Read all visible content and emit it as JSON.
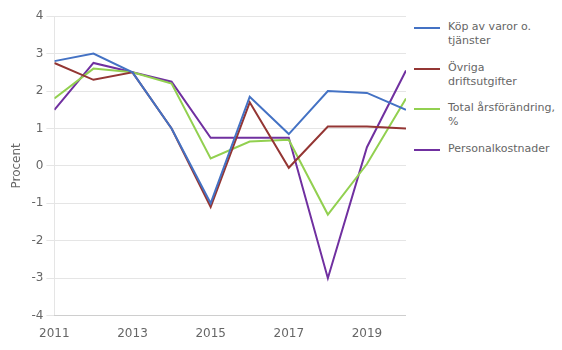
{
  "chart_data": {
    "type": "line",
    "ylabel": "Procent",
    "x": [
      2011,
      2012,
      2013,
      2014,
      2015,
      2016,
      2017,
      2018,
      2019,
      2020
    ],
    "series": [
      {
        "name": "Köp av varor o.\ntjänster",
        "color": "#4472c4",
        "values": [
          2.8,
          3.0,
          2.5,
          1.0,
          -1.0,
          1.85,
          0.85,
          2.0,
          1.95,
          1.5
        ]
      },
      {
        "name": "Övriga driftsutgifter",
        "color": "#943634",
        "values": [
          2.75,
          2.3,
          2.5,
          1.0,
          -1.1,
          1.7,
          -0.05,
          1.05,
          1.05,
          1.0
        ]
      },
      {
        "name": "Total årsförändring,\n%",
        "color": "#92d050",
        "values": [
          1.8,
          2.6,
          2.5,
          2.2,
          0.2,
          0.65,
          0.7,
          -1.3,
          0.05,
          1.8
        ]
      },
      {
        "name": "Personalkostnader",
        "color": "#7030a0",
        "values": [
          1.5,
          2.75,
          2.5,
          2.25,
          0.75,
          0.75,
          0.75,
          -3.0,
          0.5,
          2.55
        ]
      }
    ],
    "xlim": [
      2011,
      2020
    ],
    "xticks": [
      2011,
      2013,
      2015,
      2017,
      2019
    ],
    "ylim": [
      -4,
      4
    ],
    "yticks": [
      -4,
      -3,
      -2,
      -1,
      0,
      1,
      2,
      3,
      4
    ],
    "grid": "y",
    "legend": "right"
  }
}
